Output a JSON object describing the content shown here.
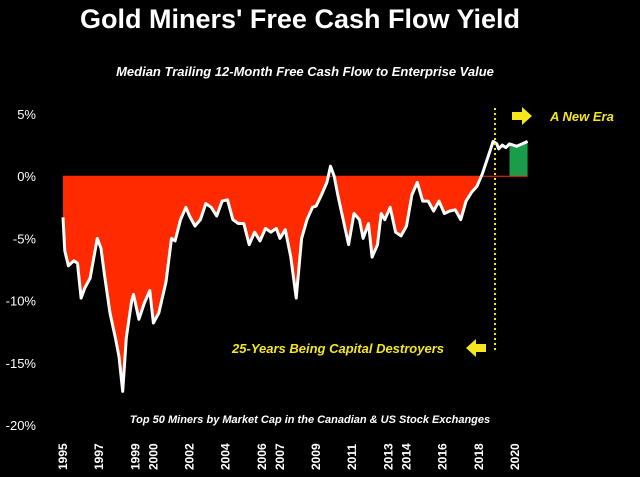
{
  "title": "Gold Miners' Free Cash Flow Yield",
  "subtitle": "Median Trailing 12-Month Free Cash Flow to Enterprise Value",
  "chart_data": {
    "type": "area",
    "title": "Gold Miners' Free Cash Flow Yield",
    "subtitle": "Median Trailing 12-Month Free Cash Flow to Enterprise Value",
    "xlabel": "",
    "ylabel": "",
    "xlim": [
      1995,
      2021
    ],
    "ylim": [
      -20,
      5
    ],
    "y_ticks": [
      5,
      0,
      -5,
      -10,
      -15,
      -20
    ],
    "y_tick_labels": [
      "5%",
      "0%",
      "-5%",
      "-10%",
      "-15%",
      "-20%"
    ],
    "x_ticks": [
      1995,
      1997,
      1999,
      2000,
      2002,
      2004,
      2006,
      2007,
      2009,
      2011,
      2013,
      2014,
      2016,
      2018,
      2020
    ],
    "x_tick_labels": [
      "1995",
      "1997",
      "1999",
      "2000",
      "2002",
      "2004",
      "2006",
      "2007",
      "2009",
      "2011",
      "2013",
      "2014",
      "2016",
      "2018",
      "2020"
    ],
    "grid": false,
    "colors": {
      "negative_fill": "#ff2a00",
      "positive_fill": "#1a9c4a",
      "line": "#ffffff",
      "annotation": "#f5e61e"
    },
    "series": [
      {
        "x": [
          1995.0,
          1995.1,
          1995.3,
          1995.6,
          1995.8,
          1996.0,
          1996.2,
          1996.5,
          1996.9,
          1997.1,
          1997.3,
          1997.6,
          1997.9,
          1998.1,
          1998.3,
          1998.5,
          1998.7,
          1998.8,
          1998.9,
          1999.2,
          1999.5,
          1999.8,
          2000.0,
          2000.3,
          2000.7,
          2001.0,
          2001.2,
          2001.5,
          2001.8,
          2002.0,
          2002.3,
          2002.6,
          2002.9,
          2003.2,
          2003.5,
          2003.8,
          2004.1,
          2004.4,
          2004.7,
          2005.0,
          2005.3,
          2005.6,
          2005.9,
          2006.2,
          2006.5,
          2006.8,
          2007.0,
          2007.3,
          2007.6,
          2007.9,
          2008.2,
          2008.5,
          2008.8,
          2009.0,
          2009.3,
          2009.6,
          2009.8,
          2010.0,
          2010.2,
          2010.5,
          2010.8,
          2011.1,
          2011.4,
          2011.6,
          2011.9,
          2012.1,
          2012.4,
          2012.6,
          2012.8,
          2013.1,
          2013.4,
          2013.7,
          2014.0,
          2014.3,
          2014.6,
          2014.9,
          2015.2,
          2015.5,
          2015.8,
          2016.1,
          2016.4,
          2016.7,
          2017.0,
          2017.3,
          2017.6,
          2017.9,
          2018.2,
          2018.5,
          2018.8,
          2019.0,
          2019.1,
          2019.3,
          2019.5,
          2019.7,
          2019.9,
          2020.1,
          2020.4,
          2020.7
        ],
        "values": [
          -3.3,
          -6.0,
          -7.2,
          -6.8,
          -7.0,
          -9.8,
          -9.0,
          -8.2,
          -5.0,
          -5.8,
          -8.0,
          -11.0,
          -13.0,
          -14.5,
          -17.3,
          -13.0,
          -11.0,
          -10.0,
          -9.5,
          -11.5,
          -10.2,
          -9.2,
          -11.8,
          -11.0,
          -8.5,
          -5.0,
          -5.2,
          -3.5,
          -2.5,
          -3.2,
          -4.0,
          -3.5,
          -2.2,
          -2.5,
          -3.2,
          -2.0,
          -1.9,
          -3.5,
          -3.8,
          -3.8,
          -5.5,
          -4.5,
          -5.2,
          -4.2,
          -4.5,
          -4.2,
          -5.0,
          -4.3,
          -6.5,
          -9.8,
          -5.0,
          -3.5,
          -2.5,
          -2.4,
          -1.5,
          -0.5,
          0.8,
          0.0,
          -1.5,
          -3.5,
          -5.5,
          -3.0,
          -3.5,
          -5.0,
          -3.8,
          -6.5,
          -5.5,
          -3.0,
          -3.5,
          -2.5,
          -4.5,
          -4.8,
          -4.0,
          -1.5,
          -0.5,
          -2.0,
          -2.0,
          -2.8,
          -2.0,
          -3.0,
          -2.8,
          -2.7,
          -3.5,
          -2.0,
          -1.3,
          -0.8,
          0.2,
          1.5,
          2.8,
          2.6,
          2.2,
          2.5,
          2.3,
          2.6,
          2.5,
          2.4,
          2.6,
          2.8
        ]
      }
    ],
    "annotations": {
      "new_era": "A New Era",
      "destroyers": "25-Years Being Capital Destroyers",
      "footnote": "Top 50 Miners by Market Cap in the Canadian & US Stock Exchanges"
    }
  }
}
